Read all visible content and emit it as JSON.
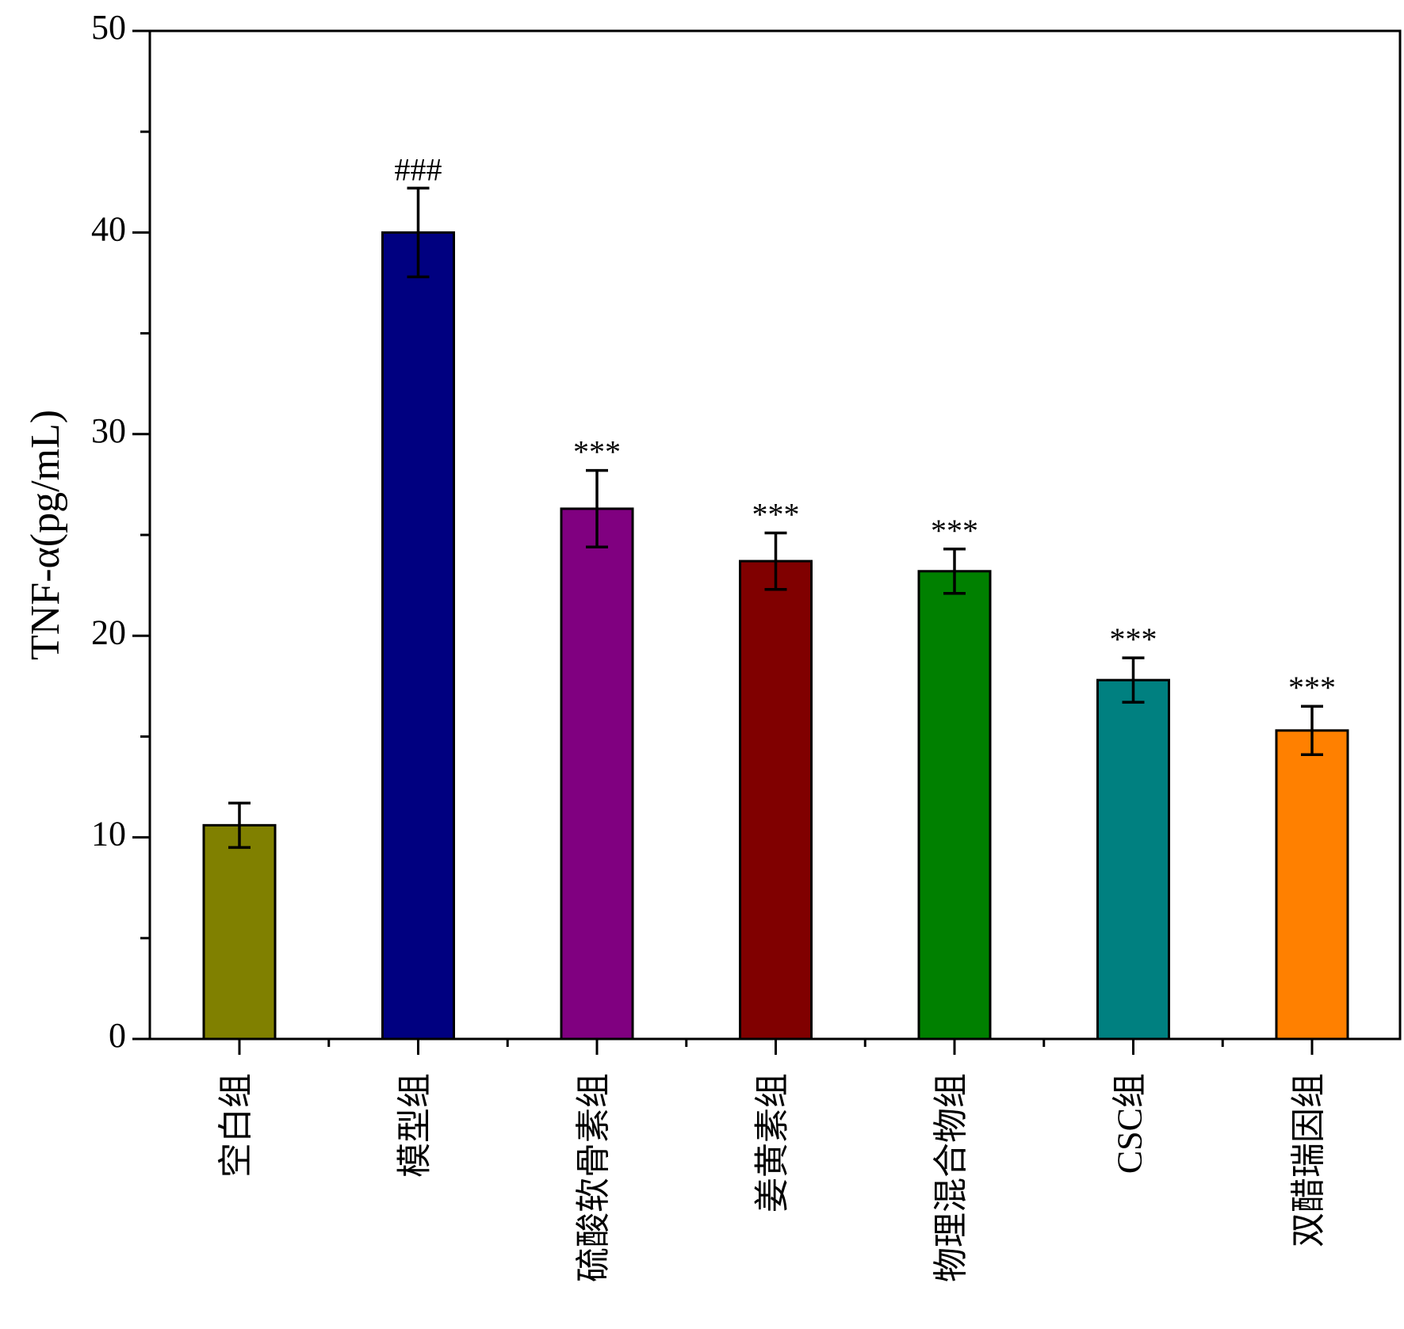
{
  "chart_data": {
    "type": "bar",
    "title": "",
    "xlabel": "",
    "ylabel": "TNF-α(pg/mL)",
    "ylim": [
      0,
      50
    ],
    "yticks": [
      0,
      10,
      20,
      30,
      40,
      50
    ],
    "grid": false,
    "legend": "none",
    "categories": [
      "空白组",
      "模型组",
      "硫酸软骨素组",
      "姜黄素组",
      "物理混合物组",
      "CSC组",
      "双醋瑞因组"
    ],
    "values": [
      10.6,
      40.0,
      26.3,
      23.7,
      23.2,
      17.8,
      15.3
    ],
    "errors": [
      1.1,
      2.2,
      1.9,
      1.4,
      1.1,
      1.1,
      1.2
    ],
    "annotations": [
      "",
      "###",
      "***",
      "***",
      "***",
      "***",
      "***"
    ],
    "colors": [
      "#808000",
      "#000080",
      "#800080",
      "#800000",
      "#008000",
      "#008080",
      "#FF8000"
    ]
  }
}
